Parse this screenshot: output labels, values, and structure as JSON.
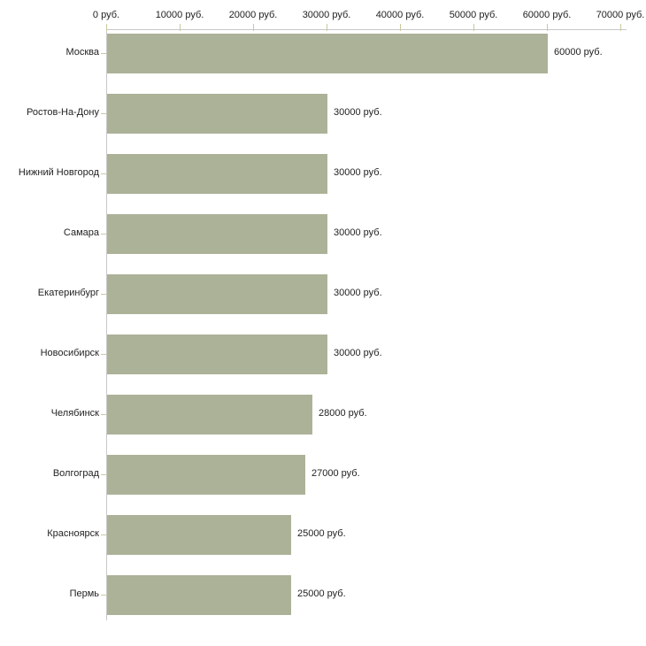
{
  "chart_data": {
    "type": "bar",
    "orientation": "horizontal",
    "title": "",
    "xlabel": "",
    "ylabel": "",
    "unit": "руб.",
    "categories": [
      "Москва",
      "Ростов-На-Дону",
      "Нижний Новгород",
      "Самара",
      "Екатеринбург",
      "Новосибирск",
      "Челябинск",
      "Волгоград",
      "Красноярск",
      "Пермь"
    ],
    "values": [
      60000,
      30000,
      30000,
      30000,
      30000,
      30000,
      28000,
      27000,
      25000,
      25000
    ],
    "value_labels": [
      "60000 руб.",
      "30000 руб.",
      "30000 руб.",
      "30000 руб.",
      "30000 руб.",
      "30000 руб.",
      "28000 руб.",
      "27000 руб.",
      "25000 руб.",
      "25000 руб."
    ],
    "x_axis": {
      "position": "top",
      "range": [
        0,
        70000
      ],
      "grid": false,
      "ticks": [
        {
          "value": 0,
          "label": "0 руб."
        },
        {
          "value": 10000,
          "label": "10000 руб."
        },
        {
          "value": 20000,
          "label": "20000 руб."
        },
        {
          "value": 30000,
          "label": "30000 руб."
        },
        {
          "value": 40000,
          "label": "40000 руб."
        },
        {
          "value": 50000,
          "label": "50000 руб."
        },
        {
          "value": 60000,
          "label": "60000 руб."
        },
        {
          "value": 70000,
          "label": "70000 руб."
        }
      ]
    },
    "legend": null,
    "colors": {
      "bar": "#acb298",
      "axis_line": "#c9c9c9",
      "tick_mark": "#c9c9a0",
      "text": "#222222",
      "background": "#ffffff"
    }
  }
}
